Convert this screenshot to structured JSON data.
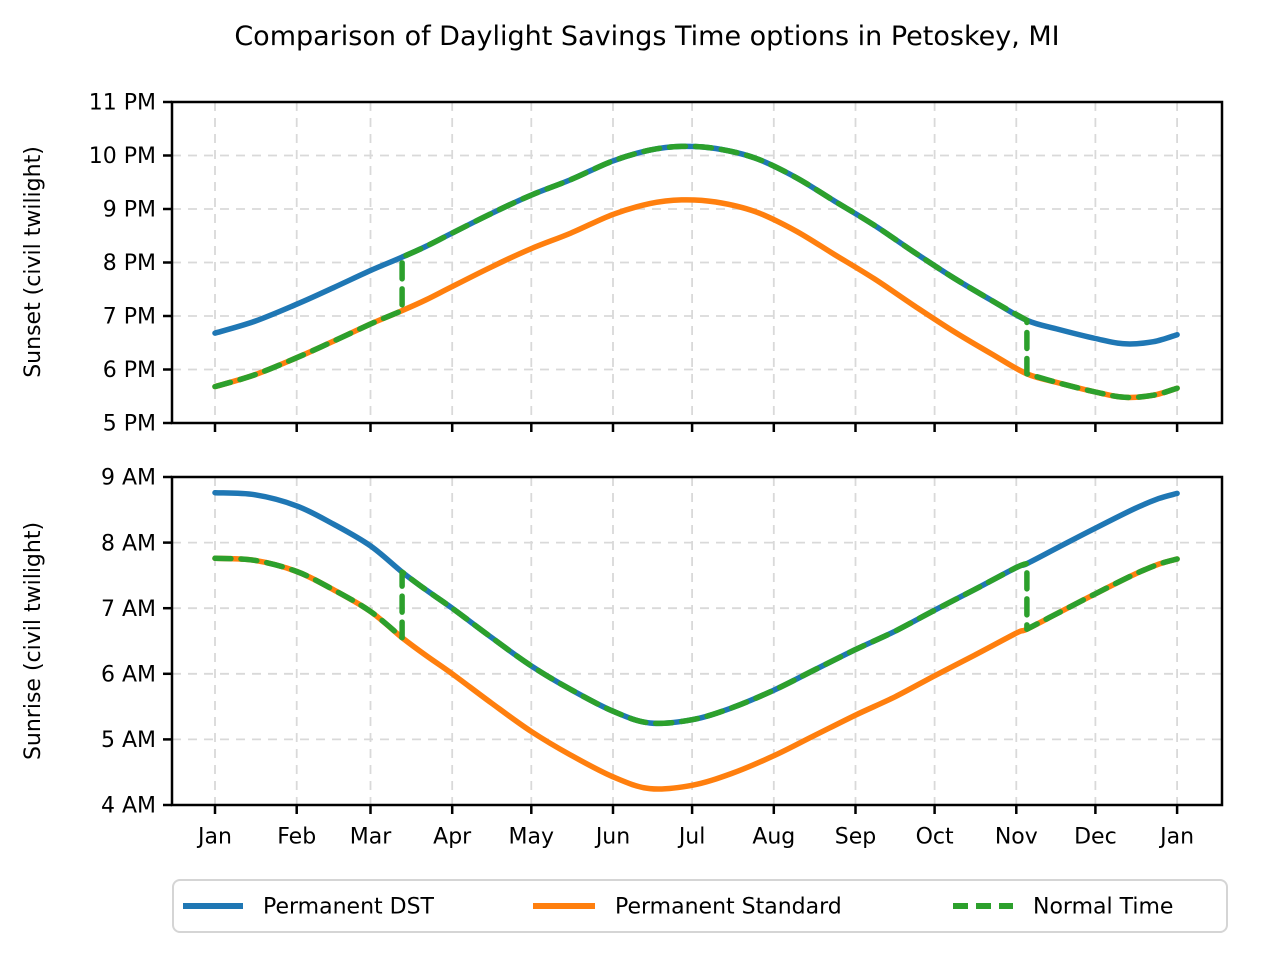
{
  "title": "Comparison of Daylight Savings Time options in Petoskey, MI",
  "colors": {
    "permanent_dst": "#1f77b4",
    "permanent_standard": "#ff7f0e",
    "normal_time": "#2ca02c",
    "grid": "#d9d9d9",
    "spine": "#000000",
    "legend_border": "#d5d5d5",
    "background": "#ffffff"
  },
  "legend": {
    "items": [
      {
        "label": "Permanent DST",
        "color": "#1f77b4",
        "dash": false
      },
      {
        "label": "Permanent Standard",
        "color": "#ff7f0e",
        "dash": false
      },
      {
        "label": "Normal Time",
        "color": "#2ca02c",
        "dash": true
      }
    ]
  },
  "chart_data": [
    {
      "type": "line",
      "ylabel": "Sunset (civil twilight)",
      "ylim": [
        17,
        23
      ],
      "ytick_values": [
        23,
        22,
        21,
        20,
        19,
        18,
        17
      ],
      "ytick_labels": [
        "11 PM",
        "10 PM",
        "9 PM",
        "8 PM",
        "7 PM",
        "6 PM",
        "5 PM"
      ],
      "xtick_days": [
        0,
        31,
        59,
        90,
        120,
        151,
        181,
        212,
        243,
        273,
        304,
        334,
        365
      ],
      "xtick_labels": [
        "Jan",
        "Feb",
        "Mar",
        "Apr",
        "May",
        "Jun",
        "Jul",
        "Aug",
        "Sep",
        "Oct",
        "Nov",
        "Dec",
        "Jan"
      ],
      "grid": true,
      "x_unit": "day_of_year",
      "y_unit": "hour_of_day_24h",
      "dst_start_day": 71,
      "dst_end_day": 308,
      "standard_time_points": [
        [
          0,
          17.68
        ],
        [
          15,
          17.9
        ],
        [
          31,
          18.22
        ],
        [
          45,
          18.53
        ],
        [
          59,
          18.85
        ],
        [
          71,
          19.1
        ],
        [
          80,
          19.3
        ],
        [
          90,
          19.55
        ],
        [
          105,
          19.92
        ],
        [
          120,
          20.26
        ],
        [
          135,
          20.55
        ],
        [
          151,
          20.9
        ],
        [
          165,
          21.1
        ],
        [
          177,
          21.17
        ],
        [
          190,
          21.13
        ],
        [
          205,
          20.95
        ],
        [
          220,
          20.6
        ],
        [
          235,
          20.15
        ],
        [
          250,
          19.7
        ],
        [
          265,
          19.2
        ],
        [
          280,
          18.72
        ],
        [
          295,
          18.28
        ],
        [
          308,
          17.92
        ],
        [
          320,
          17.75
        ],
        [
          334,
          17.58
        ],
        [
          345,
          17.48
        ],
        [
          356,
          17.52
        ],
        [
          365,
          17.65
        ]
      ],
      "series": [
        {
          "name": "Permanent DST",
          "color": "#1f77b4",
          "line": "solid",
          "offset_hours": 1,
          "mode": "fixed"
        },
        {
          "name": "Permanent Standard",
          "color": "#ff7f0e",
          "line": "solid",
          "offset_hours": 0,
          "mode": "fixed"
        },
        {
          "name": "Normal Time",
          "color": "#2ca02c",
          "line": "dashed",
          "offset_hours": 1,
          "mode": "dst_window"
        }
      ]
    },
    {
      "type": "line",
      "ylabel": "Sunrise (civil twilight)",
      "ylim": [
        4,
        9
      ],
      "ytick_values": [
        9,
        8,
        7,
        6,
        5,
        4
      ],
      "ytick_labels": [
        "9 AM",
        "8 AM",
        "7 AM",
        "6 AM",
        "5 AM",
        "4 AM"
      ],
      "xtick_days": [
        0,
        31,
        59,
        90,
        120,
        151,
        181,
        212,
        243,
        273,
        304,
        334,
        365
      ],
      "xtick_labels": [
        "Jan",
        "Feb",
        "Mar",
        "Apr",
        "May",
        "Jun",
        "Jul",
        "Aug",
        "Sep",
        "Oct",
        "Nov",
        "Dec",
        "Jan"
      ],
      "grid": true,
      "x_unit": "day_of_year",
      "y_unit": "hour_of_day_24h",
      "dst_start_day": 71,
      "dst_end_day": 308,
      "standard_time_points": [
        [
          0,
          7.76
        ],
        [
          15,
          7.73
        ],
        [
          31,
          7.56
        ],
        [
          45,
          7.28
        ],
        [
          59,
          6.95
        ],
        [
          71,
          6.55
        ],
        [
          80,
          6.28
        ],
        [
          90,
          6.0
        ],
        [
          105,
          5.55
        ],
        [
          120,
          5.12
        ],
        [
          135,
          4.76
        ],
        [
          151,
          4.43
        ],
        [
          165,
          4.25
        ],
        [
          181,
          4.3
        ],
        [
          196,
          4.48
        ],
        [
          212,
          4.75
        ],
        [
          227,
          5.05
        ],
        [
          243,
          5.37
        ],
        [
          258,
          5.65
        ],
        [
          273,
          5.97
        ],
        [
          288,
          6.28
        ],
        [
          304,
          6.62
        ],
        [
          308,
          6.68
        ],
        [
          320,
          6.93
        ],
        [
          334,
          7.22
        ],
        [
          349,
          7.52
        ],
        [
          358,
          7.67
        ],
        [
          365,
          7.75
        ]
      ],
      "series": [
        {
          "name": "Permanent DST",
          "color": "#1f77b4",
          "line": "solid",
          "offset_hours": 1,
          "mode": "fixed"
        },
        {
          "name": "Permanent Standard",
          "color": "#ff7f0e",
          "line": "solid",
          "offset_hours": 0,
          "mode": "fixed"
        },
        {
          "name": "Normal Time",
          "color": "#2ca02c",
          "line": "dashed",
          "offset_hours": 1,
          "mode": "dst_window"
        }
      ]
    }
  ]
}
